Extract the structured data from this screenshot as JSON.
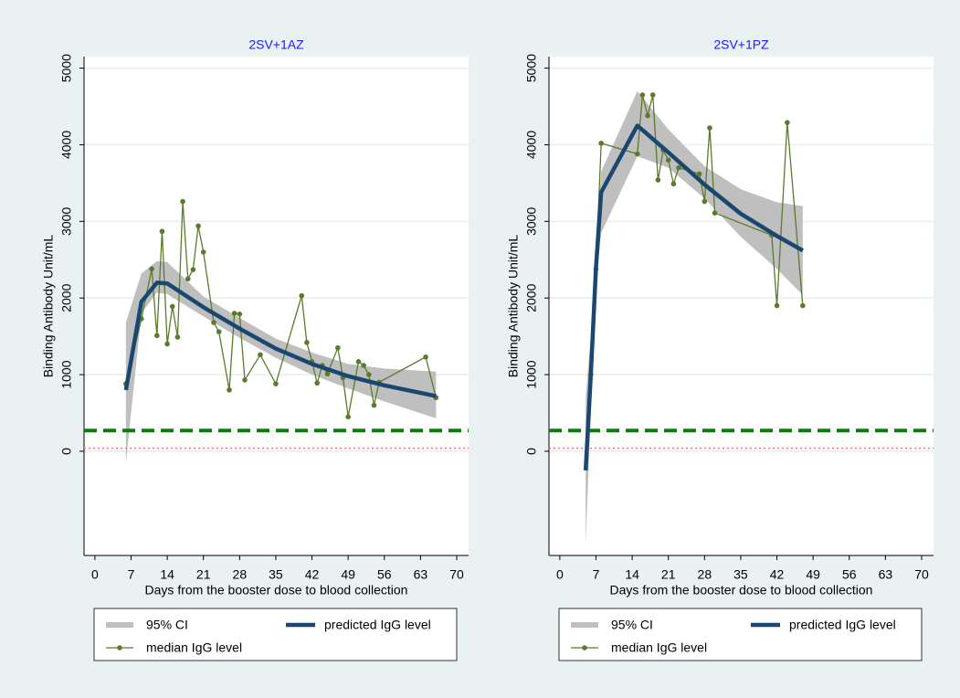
{
  "chart_data": [
    {
      "type": "line",
      "title": "2SV+1AZ",
      "x_label": "Days from the booster dose to blood collection",
      "y_label": "Binding Antibody Unit/mL",
      "xlim": [
        -2.1,
        72.3
      ],
      "ylim": [
        -1360,
        5150
      ],
      "xticks": [
        0,
        7,
        14,
        21,
        28,
        35,
        42,
        49,
        56,
        63,
        70
      ],
      "yticks": [
        0,
        1000,
        2000,
        3000,
        4000,
        5000
      ],
      "grid": true,
      "series": [
        {
          "name": "95% CI",
          "color": "#bfbfbf",
          "x": [
            6,
            9,
            12,
            14,
            21,
            28,
            35,
            42,
            49,
            56,
            66
          ],
          "lower": [
            -150,
            1800,
            2070,
            2050,
            1760,
            1480,
            1220,
            1000,
            820,
            650,
            430
          ],
          "upper": [
            1680,
            2320,
            2480,
            2470,
            2020,
            1740,
            1470,
            1290,
            1140,
            1080,
            1040
          ]
        },
        {
          "name": "predicted IgG level",
          "color": "#1a476f",
          "x": [
            6,
            9,
            12,
            14,
            21,
            28,
            35,
            42,
            49,
            56,
            66
          ],
          "values": [
            800,
            1950,
            2200,
            2190,
            1880,
            1600,
            1340,
            1140,
            980,
            860,
            720
          ]
        },
        {
          "name": "median IgG level",
          "color": "#5b7b2b",
          "x": [
            6,
            9,
            11,
            12,
            13,
            14,
            15,
            16,
            17,
            18,
            19,
            20,
            21,
            23,
            24,
            26,
            27,
            28,
            29,
            32,
            35,
            40,
            41,
            42,
            43,
            44,
            45,
            47,
            48,
            49,
            51,
            52,
            53,
            54,
            55,
            64,
            66
          ],
          "values": [
            880,
            1730,
            2380,
            1510,
            2870,
            1400,
            1890,
            1490,
            3260,
            2250,
            2370,
            2940,
            2600,
            1680,
            1560,
            800,
            1800,
            1790,
            930,
            1260,
            880,
            2030,
            1420,
            1170,
            890,
            1120,
            1010,
            1350,
            960,
            450,
            1170,
            1120,
            1000,
            600,
            900,
            1230,
            700
          ]
        }
      ],
      "hlines": [
        {
          "value": 270,
          "color": "#0f7a0f",
          "style": "dashed"
        },
        {
          "value": 40,
          "color": "#ff7070",
          "style": "dotted"
        }
      ]
    },
    {
      "type": "line",
      "title": "2SV+1PZ",
      "x_label": "Days from the booster dose to blood collection",
      "y_label": "Binding Antibody Unit/mL",
      "xlim": [
        -2.1,
        72.3
      ],
      "ylim": [
        -1360,
        5150
      ],
      "xticks": [
        0,
        7,
        14,
        21,
        28,
        35,
        42,
        49,
        56,
        63,
        70
      ],
      "yticks": [
        0,
        1000,
        2000,
        3000,
        4000,
        5000
      ],
      "grid": true,
      "series": [
        {
          "name": "95% CI",
          "color": "#bfbfbf",
          "x": [
            5,
            6,
            7,
            8,
            15,
            21,
            28,
            35,
            42,
            47
          ],
          "lower": [
            -1200,
            500,
            2200,
            2850,
            3850,
            3700,
            3300,
            2800,
            2380,
            2040
          ],
          "upper": [
            700,
            1500,
            2700,
            3650,
            4700,
            4200,
            3720,
            3420,
            3250,
            3200
          ]
        },
        {
          "name": "predicted IgG level",
          "color": "#1a476f",
          "x": [
            5,
            6,
            7,
            8,
            15,
            21,
            28,
            35,
            42,
            47
          ],
          "values": [
            -250,
            1000,
            2400,
            3380,
            4250,
            3900,
            3480,
            3100,
            2810,
            2620
          ]
        },
        {
          "name": "median IgG level",
          "color": "#5b7b2b",
          "x": [
            6,
            7,
            8,
            15,
            16,
            17,
            18,
            19,
            20,
            21,
            22,
            23,
            27,
            28,
            29,
            30,
            41,
            42,
            44,
            47
          ],
          "values": [
            1000,
            2380,
            4020,
            3880,
            4650,
            4380,
            4650,
            3540,
            3930,
            3800,
            3490,
            3700,
            3620,
            3260,
            4220,
            3110,
            2820,
            1900,
            4290,
            1900
          ]
        }
      ],
      "hlines": [
        {
          "value": 270,
          "color": "#0f7a0f",
          "style": "dashed"
        },
        {
          "value": 40,
          "color": "#ff7070",
          "style": "dotted"
        }
      ]
    }
  ]
}
